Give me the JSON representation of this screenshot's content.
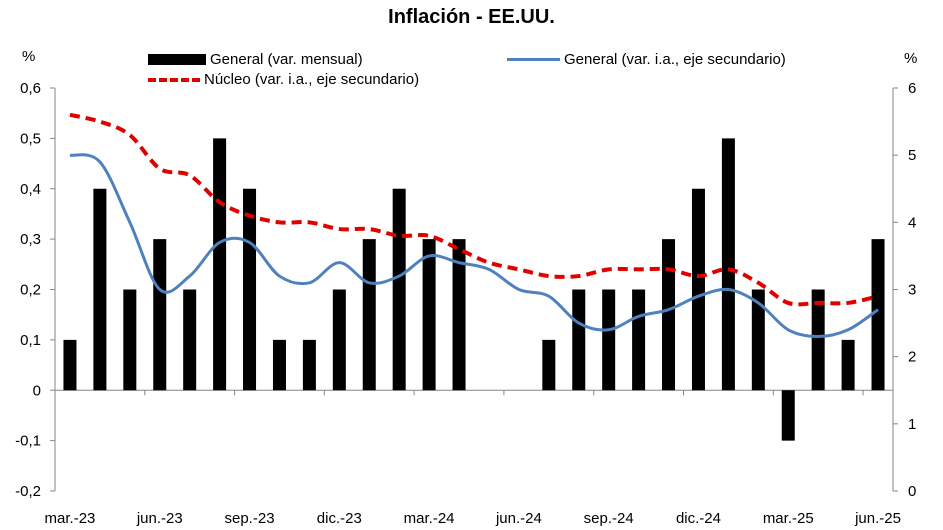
{
  "chart_data": {
    "type": "bar+line",
    "title": "Inflación - EE.UU.",
    "y_left_unit": "%",
    "y_right_unit": "%",
    "y_left": {
      "min": -0.2,
      "max": 0.6,
      "ticks": [
        "-0,2",
        "-0,1",
        "0",
        "0,1",
        "0,2",
        "0,3",
        "0,4",
        "0,5",
        "0,6"
      ]
    },
    "y_right": {
      "min": 0,
      "max": 6,
      "ticks": [
        "0",
        "1",
        "2",
        "3",
        "4",
        "5",
        "6"
      ]
    },
    "categories": [
      "mar.-23",
      "abr.-23",
      "may.-23",
      "jun.-23",
      "jul.-23",
      "ago.-23",
      "sep.-23",
      "oct.-23",
      "nov.-23",
      "dic.-23",
      "ene.-24",
      "feb.-24",
      "mar.-24",
      "abr.-24",
      "may.-24",
      "jun.-24",
      "jul.-24",
      "ago.-24",
      "sep.-24",
      "oct.-24",
      "nov.-24",
      "dic.-24",
      "ene.-25",
      "feb.-25",
      "mar.-25",
      "abr.-25",
      "may.-25",
      "jun.-25"
    ],
    "x_tick_labels": [
      {
        "index": 0,
        "label": "mar.-23"
      },
      {
        "index": 3,
        "label": "jun.-23"
      },
      {
        "index": 6,
        "label": "sep.-23"
      },
      {
        "index": 9,
        "label": "dic.-23"
      },
      {
        "index": 12,
        "label": "mar.-24"
      },
      {
        "index": 15,
        "label": "jun.-24"
      },
      {
        "index": 18,
        "label": "sep.-24"
      },
      {
        "index": 21,
        "label": "dic.-24"
      },
      {
        "index": 24,
        "label": "mar.-25"
      },
      {
        "index": 27,
        "label": "jun.-25"
      }
    ],
    "series": [
      {
        "name": "General (var. mensual)",
        "kind": "bar",
        "axis": "left",
        "color": "#000000",
        "values": [
          0.1,
          0.4,
          0.2,
          0.3,
          0.2,
          0.5,
          0.4,
          0.1,
          0.1,
          0.2,
          0.3,
          0.4,
          0.3,
          0.3,
          0.0,
          0.0,
          0.1,
          0.2,
          0.2,
          0.2,
          0.3,
          0.4,
          0.5,
          0.2,
          -0.1,
          0.2,
          0.1,
          0.3
        ]
      },
      {
        "name": "General (var. i.a., eje secundario)",
        "kind": "line",
        "axis": "right",
        "color": "#4f81bd",
        "values": [
          5.0,
          4.9,
          4.0,
          3.0,
          3.2,
          3.7,
          3.7,
          3.2,
          3.1,
          3.4,
          3.1,
          3.2,
          3.5,
          3.4,
          3.3,
          3.0,
          2.9,
          2.5,
          2.4,
          2.6,
          2.7,
          2.9,
          3.0,
          2.8,
          2.4,
          2.3,
          2.4,
          2.7
        ]
      },
      {
        "name": "Núcleo (var. i.a., eje secundario)",
        "kind": "dashed-line",
        "axis": "right",
        "color": "#e00000",
        "values": [
          5.6,
          5.5,
          5.3,
          4.8,
          4.7,
          4.3,
          4.1,
          4.0,
          4.0,
          3.9,
          3.9,
          3.8,
          3.8,
          3.6,
          3.4,
          3.3,
          3.2,
          3.2,
          3.3,
          3.3,
          3.3,
          3.2,
          3.3,
          3.1,
          2.8,
          2.8,
          2.8,
          2.9
        ]
      }
    ]
  }
}
